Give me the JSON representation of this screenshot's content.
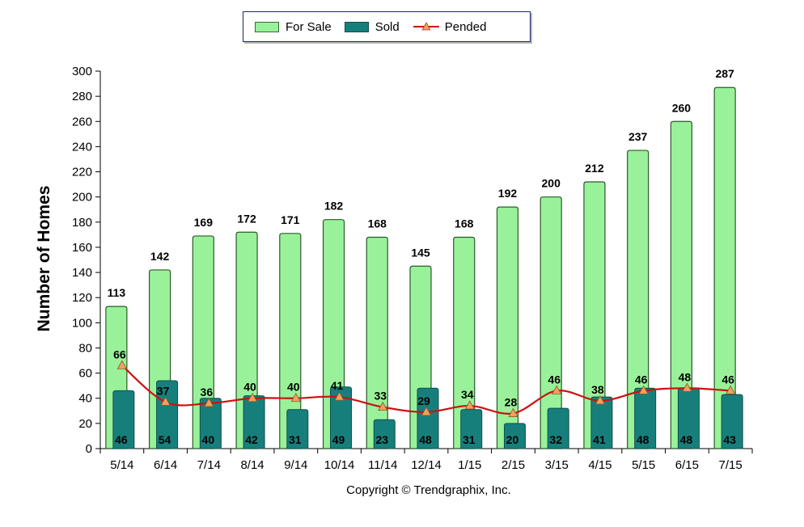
{
  "legend": {
    "for_sale": "For Sale",
    "sold": "Sold",
    "pended": "Pended"
  },
  "copyright": "Copyright © Trendgraphix, Inc.",
  "colors": {
    "for_sale": "#99f299",
    "sold": "#177f7b",
    "pended_line": "#cc1111",
    "pended_marker": "#f0a060"
  },
  "chart_data": {
    "type": "bar",
    "categories": [
      "5/14",
      "6/14",
      "7/14",
      "8/14",
      "9/14",
      "10/14",
      "11/14",
      "12/14",
      "1/15",
      "2/15",
      "3/15",
      "4/15",
      "5/15",
      "6/15",
      "7/15"
    ],
    "series": [
      {
        "name": "For Sale",
        "type": "bar",
        "values": [
          113,
          142,
          169,
          172,
          171,
          182,
          168,
          145,
          168,
          192,
          200,
          212,
          237,
          260,
          287
        ]
      },
      {
        "name": "Sold",
        "type": "bar",
        "values": [
          46,
          54,
          40,
          42,
          31,
          49,
          23,
          48,
          31,
          20,
          32,
          41,
          48,
          48,
          43
        ]
      },
      {
        "name": "Pended",
        "type": "line",
        "values": [
          66,
          37,
          36,
          40,
          40,
          41,
          33,
          29,
          34,
          28,
          46,
          38,
          46,
          48,
          46
        ]
      }
    ],
    "ylabel": "Number of Homes",
    "xlabel": "",
    "ylim": [
      0,
      300
    ],
    "yticks": [
      "0",
      "20",
      "40",
      "60",
      "80",
      "100",
      "120",
      "140",
      "160",
      "180",
      "200",
      "220",
      "240",
      "260",
      "280",
      "300"
    ],
    "legend_position": "top-center",
    "grid": false
  }
}
